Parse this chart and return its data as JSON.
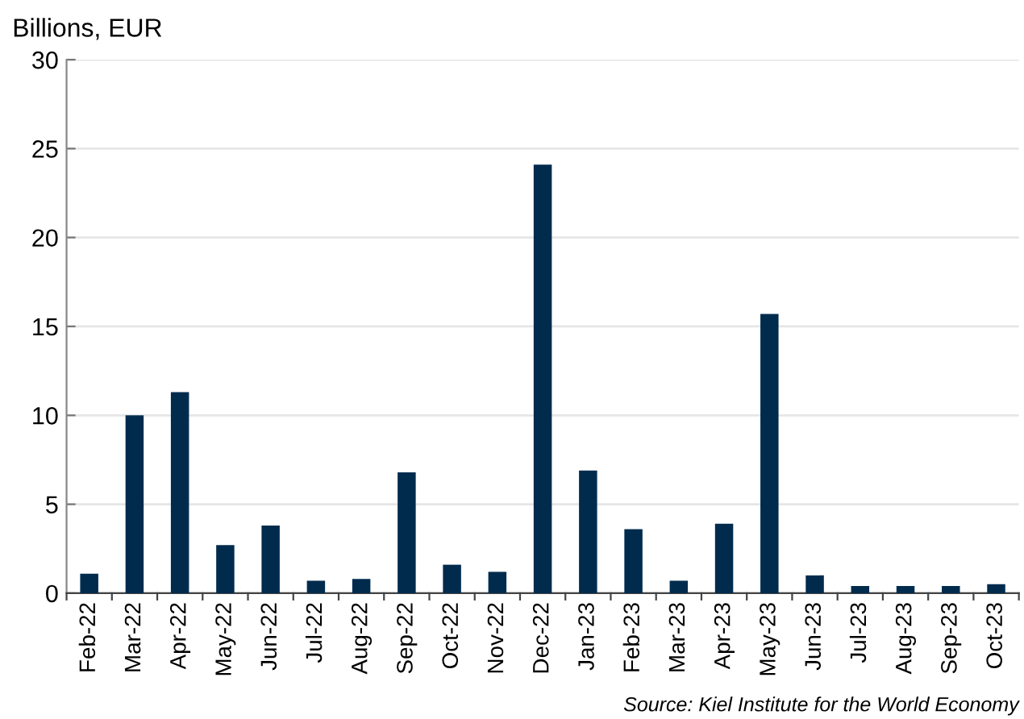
{
  "chart_data": {
    "type": "bar",
    "subtitle": "Billions, EUR",
    "categories": [
      "Feb-22",
      "Mar-22",
      "Apr-22",
      "May-22",
      "Jun-22",
      "Jul-22",
      "Aug-22",
      "Sep-22",
      "Oct-22",
      "Nov-22",
      "Dec-22",
      "Jan-23",
      "Feb-23",
      "Mar-23",
      "Apr-23",
      "May-23",
      "Jun-23",
      "Jul-23",
      "Aug-23",
      "Sep-23",
      "Oct-23"
    ],
    "values": [
      1.1,
      10.0,
      11.3,
      2.7,
      3.8,
      0.7,
      0.8,
      6.8,
      1.6,
      1.2,
      24.1,
      6.9,
      3.6,
      0.7,
      3.9,
      15.7,
      1.0,
      0.4,
      0.4,
      0.4,
      0.5
    ],
    "color": "#002b4d",
    "ylim": [
      0,
      30
    ],
    "yticks": [
      0,
      5,
      10,
      15,
      20,
      25,
      30
    ],
    "grid": "y",
    "annotations": [
      "Source: Kiel Institute for the World Economy"
    ]
  }
}
